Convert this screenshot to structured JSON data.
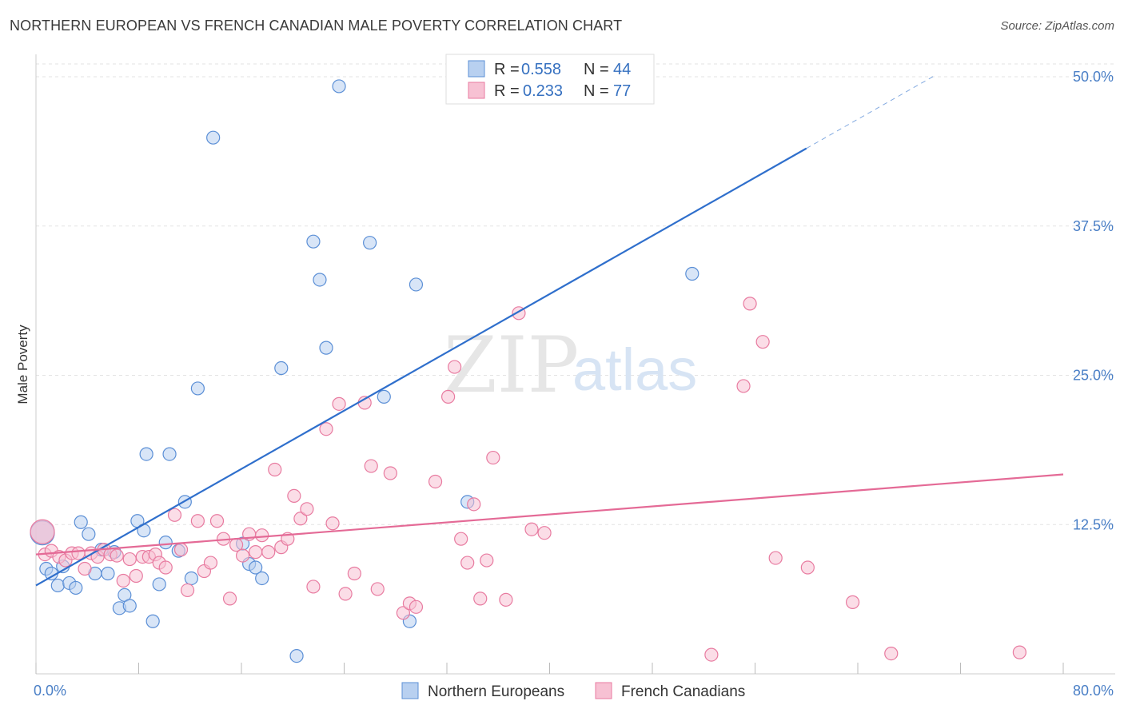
{
  "title": "NORTHERN EUROPEAN VS FRENCH CANADIAN MALE POVERTY CORRELATION CHART",
  "source": "Source: ZipAtlas.com",
  "watermark": {
    "zip": "ZIP",
    "atlas": "atlas"
  },
  "chart_data": {
    "type": "scatter",
    "xlabel": "",
    "ylabel": "Male Poverty",
    "xlim": [
      0,
      80
    ],
    "ylim": [
      0,
      50
    ],
    "x_tick_labels": [
      "0.0%",
      "80.0%"
    ],
    "y_ticks": [
      12.5,
      25.0,
      37.5,
      50.0
    ],
    "y_tick_labels": [
      "12.5%",
      "25.0%",
      "37.5%",
      "50.0%"
    ],
    "grid": true,
    "legend": {
      "position": "top-center",
      "entries": [
        {
          "r_label": "R =",
          "r_value": "0.558",
          "n_label": "N =",
          "n_value": "44"
        },
        {
          "r_label": "R =",
          "r_value": "0.233",
          "n_label": "N =",
          "n_value": "77"
        }
      ]
    },
    "series": [
      {
        "name": "Northern Europeans",
        "color": "#5b8fd6",
        "fill": "#b8d0f0",
        "trend": {
          "x0": 0,
          "y0": 7.4,
          "x1": 60,
          "y1": 44.0,
          "dash_to_x": 70,
          "dash_to_y": 50.1
        },
        "points": [
          [
            0.5,
            11.8
          ],
          [
            0.8,
            8.8
          ],
          [
            1.2,
            8.4
          ],
          [
            1.7,
            7.4
          ],
          [
            2.1,
            9.0
          ],
          [
            2.6,
            7.6
          ],
          [
            3.1,
            7.2
          ],
          [
            3.5,
            12.7
          ],
          [
            4.1,
            11.7
          ],
          [
            4.6,
            8.4
          ],
          [
            5.1,
            10.4
          ],
          [
            5.6,
            8.4
          ],
          [
            6.1,
            10.2
          ],
          [
            6.5,
            5.5
          ],
          [
            6.9,
            6.6
          ],
          [
            7.3,
            5.7
          ],
          [
            7.9,
            12.8
          ],
          [
            8.4,
            12.0
          ],
          [
            8.6,
            18.4
          ],
          [
            9.1,
            4.4
          ],
          [
            9.6,
            7.5
          ],
          [
            10.1,
            11.0
          ],
          [
            10.4,
            18.4
          ],
          [
            11.1,
            10.3
          ],
          [
            11.6,
            14.4
          ],
          [
            12.1,
            8.0
          ],
          [
            12.6,
            23.9
          ],
          [
            13.8,
            44.9
          ],
          [
            16.1,
            10.9
          ],
          [
            16.6,
            9.2
          ],
          [
            17.1,
            8.9
          ],
          [
            17.6,
            8.0
          ],
          [
            19.1,
            25.6
          ],
          [
            20.3,
            1.5
          ],
          [
            21.6,
            36.2
          ],
          [
            22.1,
            33.0
          ],
          [
            22.6,
            27.3
          ],
          [
            23.6,
            49.2
          ],
          [
            26.0,
            36.1
          ],
          [
            27.1,
            23.2
          ],
          [
            29.1,
            4.4
          ],
          [
            29.6,
            32.6
          ],
          [
            33.6,
            14.4
          ],
          [
            51.1,
            33.5
          ]
        ]
      },
      {
        "name": "French Canadians",
        "color": "#e87ba0",
        "fill": "#f7c1d3",
        "trend": {
          "x0": 0,
          "y0": 10.0,
          "x1": 80,
          "y1": 16.7
        },
        "points": [
          [
            0.5,
            11.9
          ],
          [
            0.7,
            10.0
          ],
          [
            1.2,
            10.3
          ],
          [
            1.8,
            9.8
          ],
          [
            2.3,
            9.5
          ],
          [
            2.8,
            10.1
          ],
          [
            3.3,
            10.1
          ],
          [
            3.8,
            8.8
          ],
          [
            4.3,
            10.1
          ],
          [
            4.8,
            9.8
          ],
          [
            5.3,
            10.4
          ],
          [
            5.8,
            10.0
          ],
          [
            6.3,
            9.9
          ],
          [
            6.8,
            7.8
          ],
          [
            7.3,
            9.6
          ],
          [
            7.8,
            8.2
          ],
          [
            8.3,
            9.8
          ],
          [
            8.8,
            9.8
          ],
          [
            9.3,
            10.0
          ],
          [
            9.6,
            9.3
          ],
          [
            10.1,
            8.9
          ],
          [
            10.8,
            13.3
          ],
          [
            11.3,
            10.4
          ],
          [
            11.8,
            7.0
          ],
          [
            12.6,
            12.8
          ],
          [
            13.1,
            8.6
          ],
          [
            13.6,
            9.3
          ],
          [
            14.1,
            12.8
          ],
          [
            14.6,
            11.3
          ],
          [
            15.1,
            6.3
          ],
          [
            15.6,
            10.8
          ],
          [
            16.1,
            9.9
          ],
          [
            16.6,
            11.7
          ],
          [
            17.1,
            10.2
          ],
          [
            17.6,
            11.6
          ],
          [
            18.1,
            10.2
          ],
          [
            18.6,
            17.1
          ],
          [
            19.1,
            10.6
          ],
          [
            19.6,
            11.3
          ],
          [
            20.1,
            14.9
          ],
          [
            20.6,
            13.0
          ],
          [
            21.1,
            13.8
          ],
          [
            21.6,
            7.3
          ],
          [
            22.6,
            20.5
          ],
          [
            23.1,
            12.6
          ],
          [
            23.6,
            22.6
          ],
          [
            24.1,
            6.7
          ],
          [
            24.8,
            8.4
          ],
          [
            25.6,
            22.7
          ],
          [
            26.1,
            17.4
          ],
          [
            26.6,
            7.1
          ],
          [
            27.6,
            16.8
          ],
          [
            28.6,
            5.1
          ],
          [
            29.1,
            5.9
          ],
          [
            29.6,
            5.6
          ],
          [
            31.1,
            16.1
          ],
          [
            32.1,
            23.2
          ],
          [
            32.6,
            25.7
          ],
          [
            33.1,
            11.3
          ],
          [
            33.6,
            9.3
          ],
          [
            34.1,
            14.2
          ],
          [
            34.6,
            6.3
          ],
          [
            35.1,
            9.5
          ],
          [
            35.6,
            18.1
          ],
          [
            36.6,
            6.2
          ],
          [
            37.6,
            30.2
          ],
          [
            38.6,
            12.1
          ],
          [
            39.6,
            11.8
          ],
          [
            52.6,
            1.6
          ],
          [
            55.1,
            24.1
          ],
          [
            55.6,
            31.0
          ],
          [
            56.6,
            27.8
          ],
          [
            57.6,
            9.7
          ],
          [
            60.1,
            8.9
          ],
          [
            63.6,
            6.0
          ],
          [
            66.6,
            1.7
          ],
          [
            76.6,
            1.8
          ]
        ]
      }
    ]
  }
}
